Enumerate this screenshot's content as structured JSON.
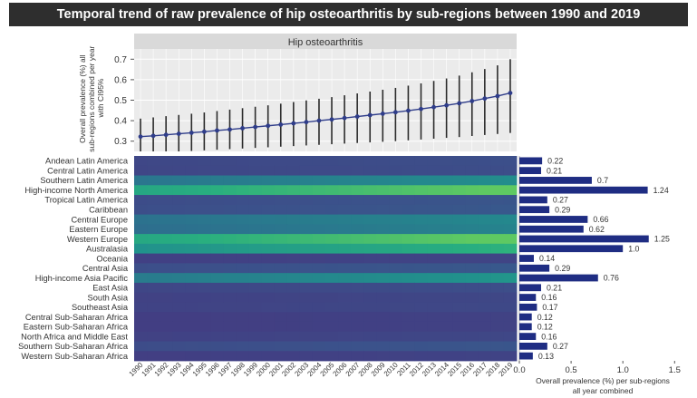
{
  "title": "Temporal trend of raw prevalence of hip osteoarthritis by sub-regions between 1990 and 2019",
  "chart_data": [
    {
      "type": "line",
      "panel_label": "Hip osteoarthritis",
      "ylabel": "Overall prevalence (%) all sub-regions combined per year with CI95%",
      "ylim": [
        0.25,
        0.75
      ],
      "yticks": [
        0.3,
        0.4,
        0.5,
        0.6,
        0.7
      ],
      "x": [
        1990,
        1991,
        1992,
        1993,
        1994,
        1995,
        1996,
        1997,
        1998,
        1999,
        2000,
        2001,
        2002,
        2003,
        2004,
        2005,
        2006,
        2007,
        2008,
        2009,
        2010,
        2011,
        2012,
        2013,
        2014,
        2015,
        2016,
        2017,
        2018,
        2019
      ],
      "y": [
        0.322,
        0.326,
        0.331,
        0.336,
        0.341,
        0.346,
        0.352,
        0.357,
        0.363,
        0.369,
        0.375,
        0.381,
        0.387,
        0.393,
        0.4,
        0.406,
        0.413,
        0.42,
        0.427,
        0.434,
        0.441,
        0.449,
        0.457,
        0.466,
        0.475,
        0.485,
        0.496,
        0.508,
        0.52,
        0.535
      ],
      "ci_low": [
        0.24,
        0.243,
        0.246,
        0.249,
        0.252,
        0.255,
        0.258,
        0.261,
        0.264,
        0.267,
        0.27,
        0.273,
        0.276,
        0.279,
        0.282,
        0.285,
        0.288,
        0.291,
        0.294,
        0.297,
        0.3,
        0.304,
        0.308,
        0.312,
        0.316,
        0.32,
        0.325,
        0.33,
        0.335,
        0.34
      ],
      "ci_high": [
        0.41,
        0.416,
        0.422,
        0.428,
        0.434,
        0.44,
        0.447,
        0.454,
        0.461,
        0.468,
        0.475,
        0.483,
        0.491,
        0.499,
        0.507,
        0.515,
        0.524,
        0.533,
        0.542,
        0.551,
        0.56,
        0.571,
        0.582,
        0.594,
        0.606,
        0.62,
        0.636,
        0.652,
        0.67,
        0.7
      ],
      "grid": true
    },
    {
      "type": "heatmap",
      "categories": [
        "Andean Latin America",
        "Central Latin America",
        "Southern Latin America",
        "High-income North America",
        "Tropical Latin America",
        "Caribbean",
        "Central Europe",
        "Eastern Europe",
        "Western Europe",
        "Australasia",
        "Oceania",
        "Central Asia",
        "High-income Asia Pacific",
        "East Asia",
        "South Asia",
        "Southeast Asia",
        "Central Sub-Saharan Africa",
        "Eastern Sub-Saharan Africa",
        "North Africa and Middle East",
        "Southern Sub-Saharan Africa",
        "Western Sub-Saharan Africa"
      ],
      "x": [
        1990,
        1991,
        1992,
        1993,
        1994,
        1995,
        1996,
        1997,
        1998,
        1999,
        2000,
        2001,
        2002,
        2003,
        2004,
        2005,
        2006,
        2007,
        2008,
        2009,
        2010,
        2011,
        2012,
        2013,
        2014,
        2015,
        2016,
        2017,
        2018,
        2019
      ],
      "colorscale": [
        "#46327e",
        "#3b528b",
        "#2c728e",
        "#21918c",
        "#28ae80",
        "#5ec962"
      ]
    },
    {
      "type": "bar",
      "orientation": "horizontal",
      "categories": [
        "Andean Latin America",
        "Central Latin America",
        "Southern Latin America",
        "High-income North America",
        "Tropical Latin America",
        "Caribbean",
        "Central Europe",
        "Eastern Europe",
        "Western Europe",
        "Australasia",
        "Oceania",
        "Central Asia",
        "High-income Asia Pacific",
        "East Asia",
        "South Asia",
        "Southeast Asia",
        "Central Sub-Saharan Africa",
        "Eastern Sub-Saharan Africa",
        "North Africa and Middle East",
        "Southern Sub-Saharan Africa",
        "Western Sub-Saharan Africa"
      ],
      "values": [
        0.22,
        0.21,
        0.7,
        1.24,
        0.27,
        0.29,
        0.66,
        0.62,
        1.25,
        1.0,
        0.14,
        0.29,
        0.76,
        0.21,
        0.16,
        0.17,
        0.12,
        0.12,
        0.16,
        0.27,
        0.13
      ],
      "value_labels": [
        "0.22",
        "0.21",
        "0.7",
        "1.24",
        "0.27",
        "0.29",
        "0.66",
        "0.62",
        "1.25",
        "1.0",
        "0.14",
        "0.29",
        "0.76",
        "0.21",
        "0.16",
        "0.17",
        "0.12",
        "0.12",
        "0.16",
        "0.27",
        "0.13"
      ],
      "xticks": [
        0.0,
        0.5,
        1.0,
        1.5
      ],
      "xtick_labels": [
        "0.0",
        "0.5",
        "1.0",
        "1.5"
      ],
      "xlim": [
        0,
        1.55
      ],
      "xlabel_line1": "Overall prevalence (%) per sub-regions",
      "xlabel_line2": "all year combined",
      "bar_color": "#1f2d83"
    }
  ]
}
